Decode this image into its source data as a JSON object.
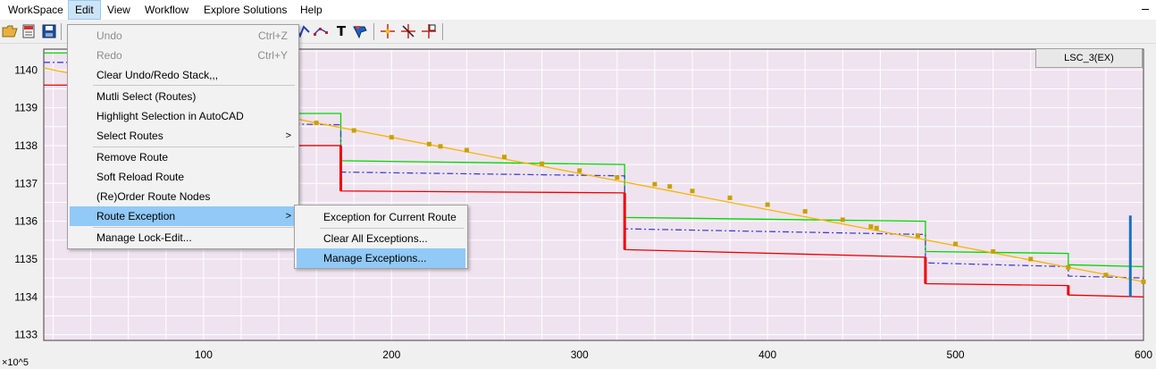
{
  "menubar": {
    "items": [
      "WorkSpace",
      "Edit",
      "View",
      "Workflow",
      "Explore Solutions",
      "Help"
    ]
  },
  "toolbar": {
    "icons": [
      "open-folder-icon",
      "edit-text-icon",
      "save-icon",
      "scatter-route-icon",
      "line-plot-icon",
      "text-tool-icon",
      "pen-marker-icon",
      "crosshair-point-icon",
      "delete-point-icon",
      "move-point-icon"
    ],
    "text_tool_glyph": "T"
  },
  "edit_menu": {
    "items": [
      {
        "label": "Undo",
        "shortcut": "Ctrl+Z"
      },
      {
        "label": "Redo",
        "shortcut": "Ctrl+Y"
      },
      {
        "label": "Clear Undo/Redo Stack,,,"
      },
      {
        "label": "Mutli Select (Routes)"
      },
      {
        "label": "Highlight Selection in AutoCAD"
      },
      {
        "label": "Select Routes",
        "arrow": ">"
      },
      {
        "label": "Remove Route"
      },
      {
        "label": "Soft Reload Route"
      },
      {
        "label": "(Re)Order Route Nodes"
      },
      {
        "label": "Route Exception",
        "arrow": ">"
      },
      {
        "label": "Manage Lock-Edit..."
      }
    ]
  },
  "route_exception_submenu": {
    "items": [
      "Exception for Current Route",
      "Clear All Exceptions...",
      "Manage Exceptions..."
    ]
  },
  "chart_data": {
    "type": "line",
    "xlim": [
      15,
      600
    ],
    "ylim": [
      1132.85,
      1140.55
    ],
    "x_ticks": [
      100,
      200,
      300,
      400,
      500,
      600
    ],
    "y_ticks": [
      1133,
      1134,
      1135,
      1136,
      1137,
      1138,
      1139,
      1140
    ],
    "y_multiplier": "×10^5",
    "grid": true,
    "legend_label": "LSC_3(EX)",
    "colors": {
      "plot_bg": "#efe3ef",
      "grid": "#ffffff",
      "green": "#00d800",
      "red": "#f00000",
      "blue_dashdot": "#4040d0",
      "orange": "#f8b400",
      "orange_marker": "#c8a000",
      "blue_bar": "#1a6fc0"
    },
    "series": [
      {
        "kind": "green",
        "x": [
          15,
          30,
          30,
          173,
          173,
          324,
          324,
          484,
          484,
          560,
          560,
          600
        ],
        "y": [
          1140.45,
          1140.45,
          1138.85,
          1138.85,
          1137.6,
          1137.5,
          1136.1,
          1136,
          1135.2,
          1135.15,
          1134.85,
          1134.8
        ]
      },
      {
        "kind": "red",
        "x": [
          15,
          30,
          30,
          173,
          173,
          324,
          324,
          484,
          484,
          560,
          560,
          600
        ],
        "y": [
          1139.6,
          1139.6,
          1138,
          1138,
          1136.8,
          1136.75,
          1135.25,
          1135.05,
          1134.35,
          1134.3,
          1134.05,
          1134
        ]
      },
      {
        "kind": "blue_dashdot",
        "x": [
          15,
          30,
          30,
          173,
          173,
          324,
          324,
          484,
          484,
          560,
          560,
          600
        ],
        "y": [
          1140.2,
          1140.2,
          1138.65,
          1138.55,
          1137.3,
          1137.2,
          1135.8,
          1135.65,
          1134.9,
          1134.8,
          1134.55,
          1134.5
        ]
      },
      {
        "kind": "orange",
        "x": [
          15,
          160,
          600
        ],
        "y": [
          1140.05,
          1138.6,
          1134.4
        ]
      },
      {
        "kind": "orange_markers",
        "x": [
          160,
          180,
          200,
          220,
          226,
          240,
          260,
          280,
          300,
          320,
          340,
          348,
          360,
          380,
          400,
          420,
          440,
          455,
          458,
          480,
          500,
          520,
          540,
          560,
          580,
          600
        ],
        "y": [
          1138.6,
          1138.4,
          1138.22,
          1138.04,
          1137.98,
          1137.88,
          1137.7,
          1137.52,
          1137.34,
          1137.16,
          1136.98,
          1136.92,
          1136.8,
          1136.62,
          1136.44,
          1136.26,
          1136.04,
          1135.86,
          1135.82,
          1135.62,
          1135.4,
          1135.2,
          1135,
          1134.78,
          1134.58,
          1134.4
        ]
      },
      {
        "kind": "blue_bar",
        "x": [
          593,
          593
        ],
        "y": [
          1134,
          1136.15
        ]
      }
    ]
  }
}
